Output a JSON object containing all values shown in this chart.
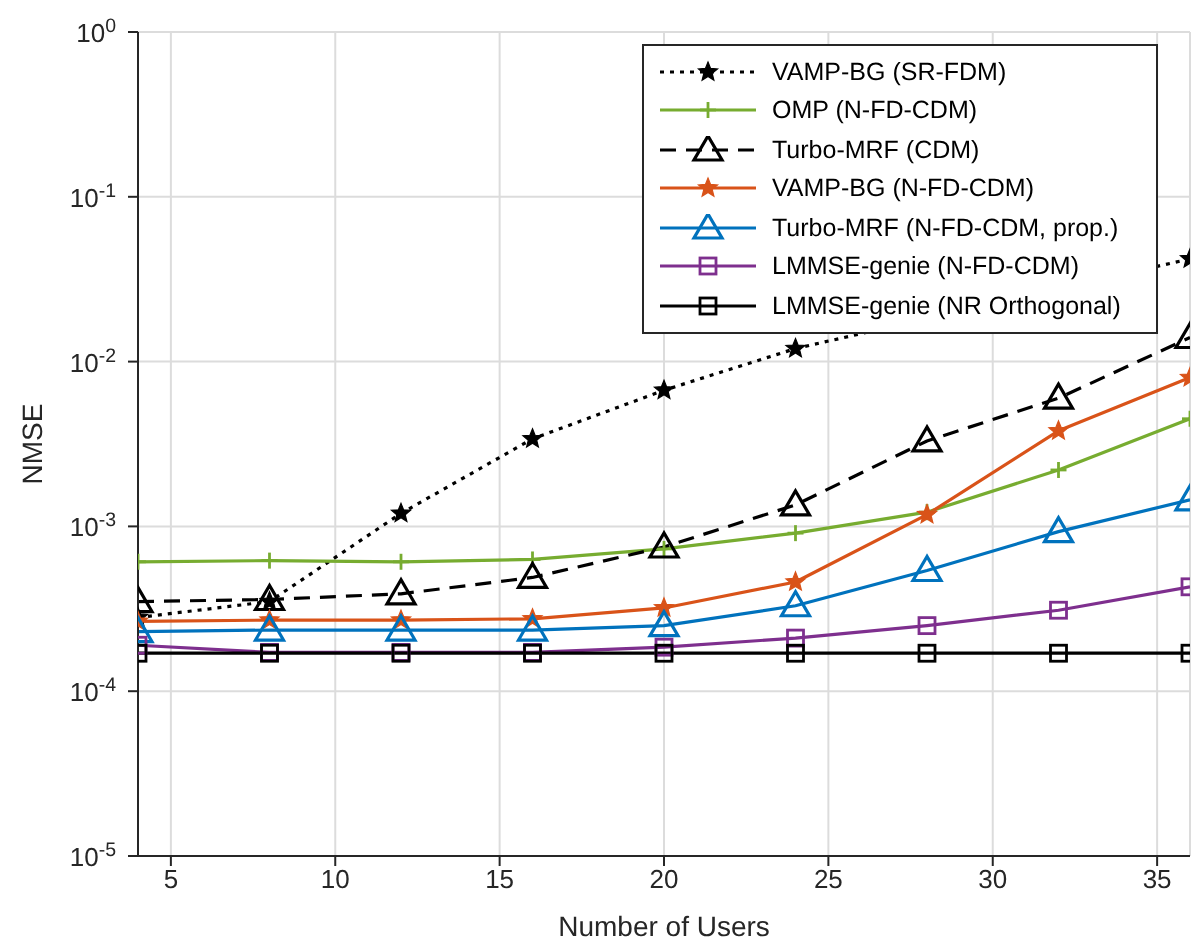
{
  "chart_data": {
    "type": "line",
    "xlabel": "Number of Users",
    "ylabel": "NMSE",
    "x": [
      4,
      8,
      12,
      16,
      20,
      24,
      28,
      32,
      36
    ],
    "xlim": [
      4,
      36
    ],
    "xticks": [
      5,
      10,
      15,
      20,
      25,
      30,
      35
    ],
    "log": true,
    "ylim": [
      1e-05,
      1
    ],
    "yticks": [
      {
        "value": 1e-05,
        "label": "10$^{-5}$"
      },
      {
        "value": 0.0001,
        "label": "10$^{-4}$"
      },
      {
        "value": 0.001,
        "label": "10$^{-3}$"
      },
      {
        "value": 0.01,
        "label": "10$^{-2}$"
      },
      {
        "value": 0.1,
        "label": "10$^{-1}$"
      },
      {
        "value": 1,
        "label": "10$^{0}$"
      }
    ],
    "grid": true,
    "legend": "top right",
    "series": [
      {
        "name": "VAMP-BG (SR-FDM)",
        "color": "#000000",
        "marker": "star",
        "line_style": "dotted",
        "values": [
          0.00028,
          0.00035,
          0.0012,
          0.0034,
          0.0067,
          0.012,
          null,
          null,
          0.042
        ]
      },
      {
        "name": "OMP (N-FD-CDM)",
        "color": "#77ac30",
        "marker": "cross",
        "line_style": "solid",
        "values": [
          0.00061,
          0.00062,
          0.00061,
          0.00063,
          0.00073,
          0.00091,
          0.00122,
          0.0022,
          0.0045
        ]
      },
      {
        "name": "Turbo-MRF (CDM)",
        "color": "#000000",
        "marker": "triangle",
        "line_style": "dashed",
        "values": [
          0.00035,
          0.00036,
          0.00039,
          0.00049,
          0.00075,
          0.00135,
          0.0033,
          0.006,
          0.014
        ]
      },
      {
        "name": "VAMP-BG (N-FD-CDM)",
        "color": "#d95319",
        "marker": "star",
        "line_style": "solid",
        "values": [
          0.000265,
          0.00027,
          0.00027,
          0.000275,
          0.00032,
          0.00046,
          0.00118,
          0.0038,
          0.008
        ]
      },
      {
        "name": "Turbo-MRF (N-FD-CDM, prop.)",
        "color": "#0072bd",
        "marker": "triangle",
        "line_style": "solid",
        "values": [
          0.00023,
          0.000235,
          0.000235,
          0.000235,
          0.00025,
          0.00033,
          0.00054,
          0.00093,
          0.00145
        ]
      },
      {
        "name": "LMMSE-genie (N-FD-CDM)",
        "color": "#7e2f8e",
        "marker": "square",
        "line_style": "solid",
        "values": [
          0.00019,
          0.000172,
          0.000172,
          0.000172,
          0.000185,
          0.00021,
          0.00025,
          0.00031,
          0.00043
        ]
      },
      {
        "name": "LMMSE-genie (NR Orthogonal)",
        "color": "#000000",
        "marker": "square",
        "line_style": "solid",
        "values": [
          0.00017,
          0.00017,
          0.00017,
          0.00017,
          0.00017,
          0.00017,
          0.00017,
          0.00017,
          0.00017
        ]
      }
    ]
  }
}
